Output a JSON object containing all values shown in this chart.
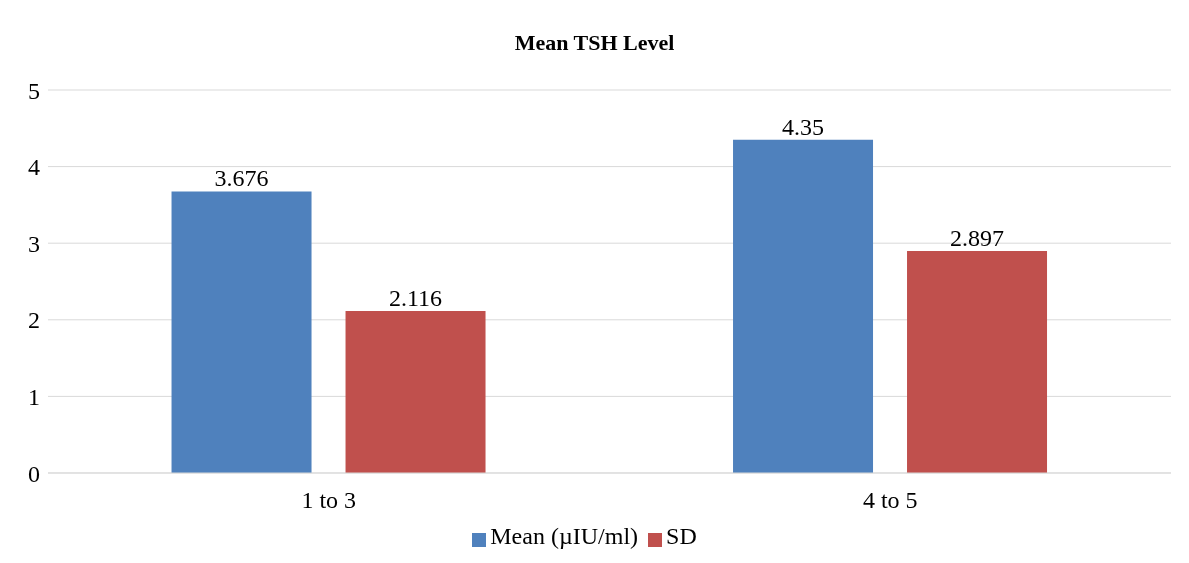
{
  "chart_data": {
    "type": "bar",
    "title": "Mean TSH Level",
    "categories": [
      "1 to 3",
      "4 to 5"
    ],
    "series": [
      {
        "name": "Mean (µIU/ml)",
        "color": "#4f81bd",
        "values": [
          3.676,
          4.35
        ]
      },
      {
        "name": "SD",
        "color": "#c0504d",
        "values": [
          2.116,
          2.897
        ]
      }
    ],
    "ylim": [
      0,
      5
    ],
    "yticks": [
      0,
      1,
      2,
      3,
      4,
      5
    ],
    "grid": "y",
    "legend": "bottom",
    "data_labels": true
  }
}
